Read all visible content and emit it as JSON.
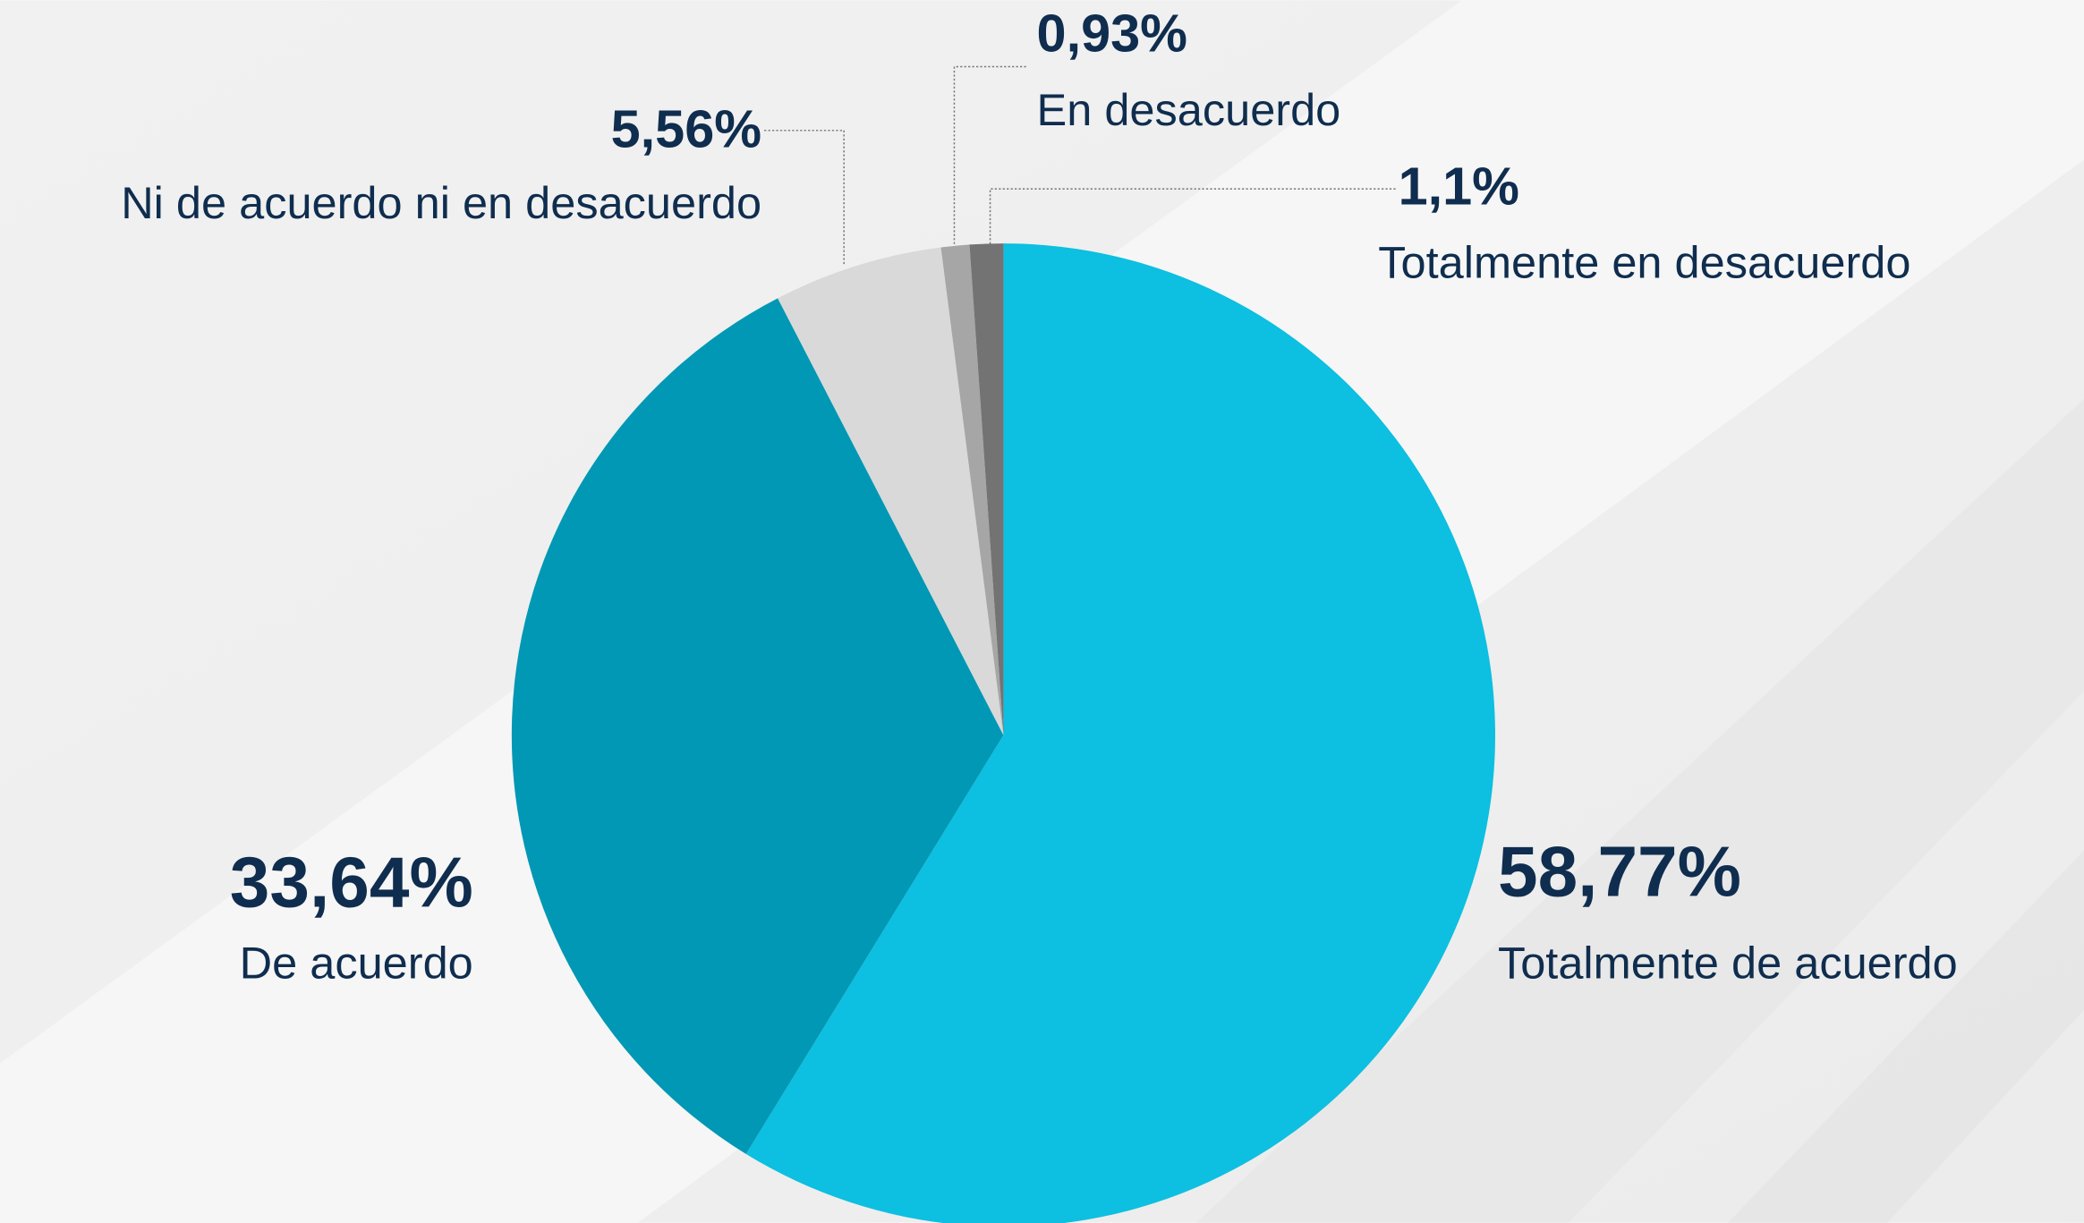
{
  "chart_data": {
    "type": "pie",
    "categories": [
      "Totalmente de acuerdo",
      "De acuerdo",
      "Ni de acuerdo ni en desacuerdo",
      "En desacuerdo",
      "Totalmente en desacuerdo"
    ],
    "values": [
      58.77,
      33.64,
      5.56,
      0.93,
      1.1
    ],
    "value_labels": [
      "58,77%",
      "33,64%",
      "5,56%",
      "0,93%",
      "1,1%"
    ],
    "colors": [
      "#0dbfe0",
      "#0098b4",
      "#d9d9d9",
      "#a6a6a6",
      "#737373"
    ]
  }
}
